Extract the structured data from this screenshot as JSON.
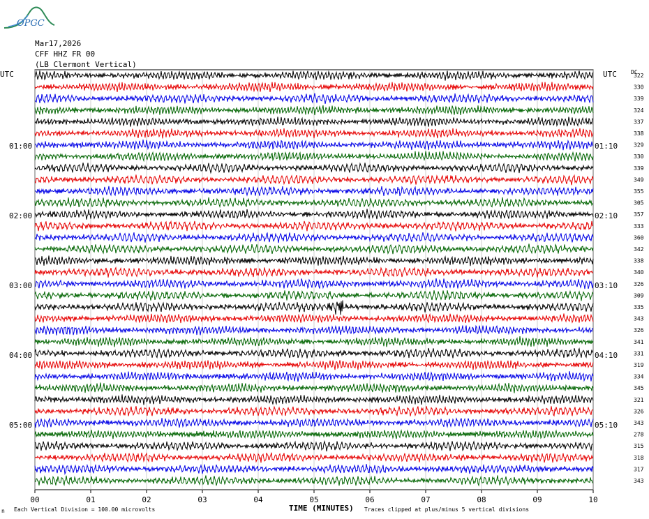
{
  "logo": {
    "text": "OPGC"
  },
  "header": {
    "date": "Mar17,2026",
    "station": "CFF HHZ FR 00",
    "location": "(LB  Clermont Vertical)"
  },
  "left_label": "UTC",
  "right_label": "UTC",
  "dc_label": "DC",
  "left_times": [
    "01:00",
    "02:00",
    "03:00",
    "04:00",
    "05:00"
  ],
  "right_times": [
    "01:10",
    "02:10",
    "03:10",
    "04:10",
    "05:10"
  ],
  "footer": {
    "scale": "Each Vertical Division =  100.00 microvolts",
    "clip": "Traces clipped at plus/minus 5 vertical divisions",
    "corner_mark": "n"
  },
  "chart_data": {
    "type": "line",
    "title": "",
    "xlabel": "TIME (MINUTES)",
    "ylabel": "",
    "xlim": [
      0,
      10
    ],
    "x_ticks": [
      "00",
      "01",
      "02",
      "03",
      "04",
      "05",
      "06",
      "07",
      "08",
      "09",
      "10"
    ],
    "trace_colors": [
      "#000000",
      "#e60000",
      "#0000e6",
      "#006400"
    ],
    "traces_per_hour": 6,
    "trace_count": 36,
    "dc_offsets": [
      322,
      330,
      339,
      324,
      337,
      338,
      329,
      330,
      339,
      349,
      355,
      305,
      357,
      333,
      360,
      342,
      338,
      340,
      326,
      309,
      335,
      343,
      326,
      341,
      331,
      319,
      334,
      345,
      321,
      326,
      343,
      278,
      315,
      318,
      317,
      343
    ],
    "events": [
      {
        "trace": 20,
        "minute_start": 4.9,
        "minute_end": 5.8,
        "peak_minute": 5.4,
        "note": "burst"
      }
    ]
  }
}
